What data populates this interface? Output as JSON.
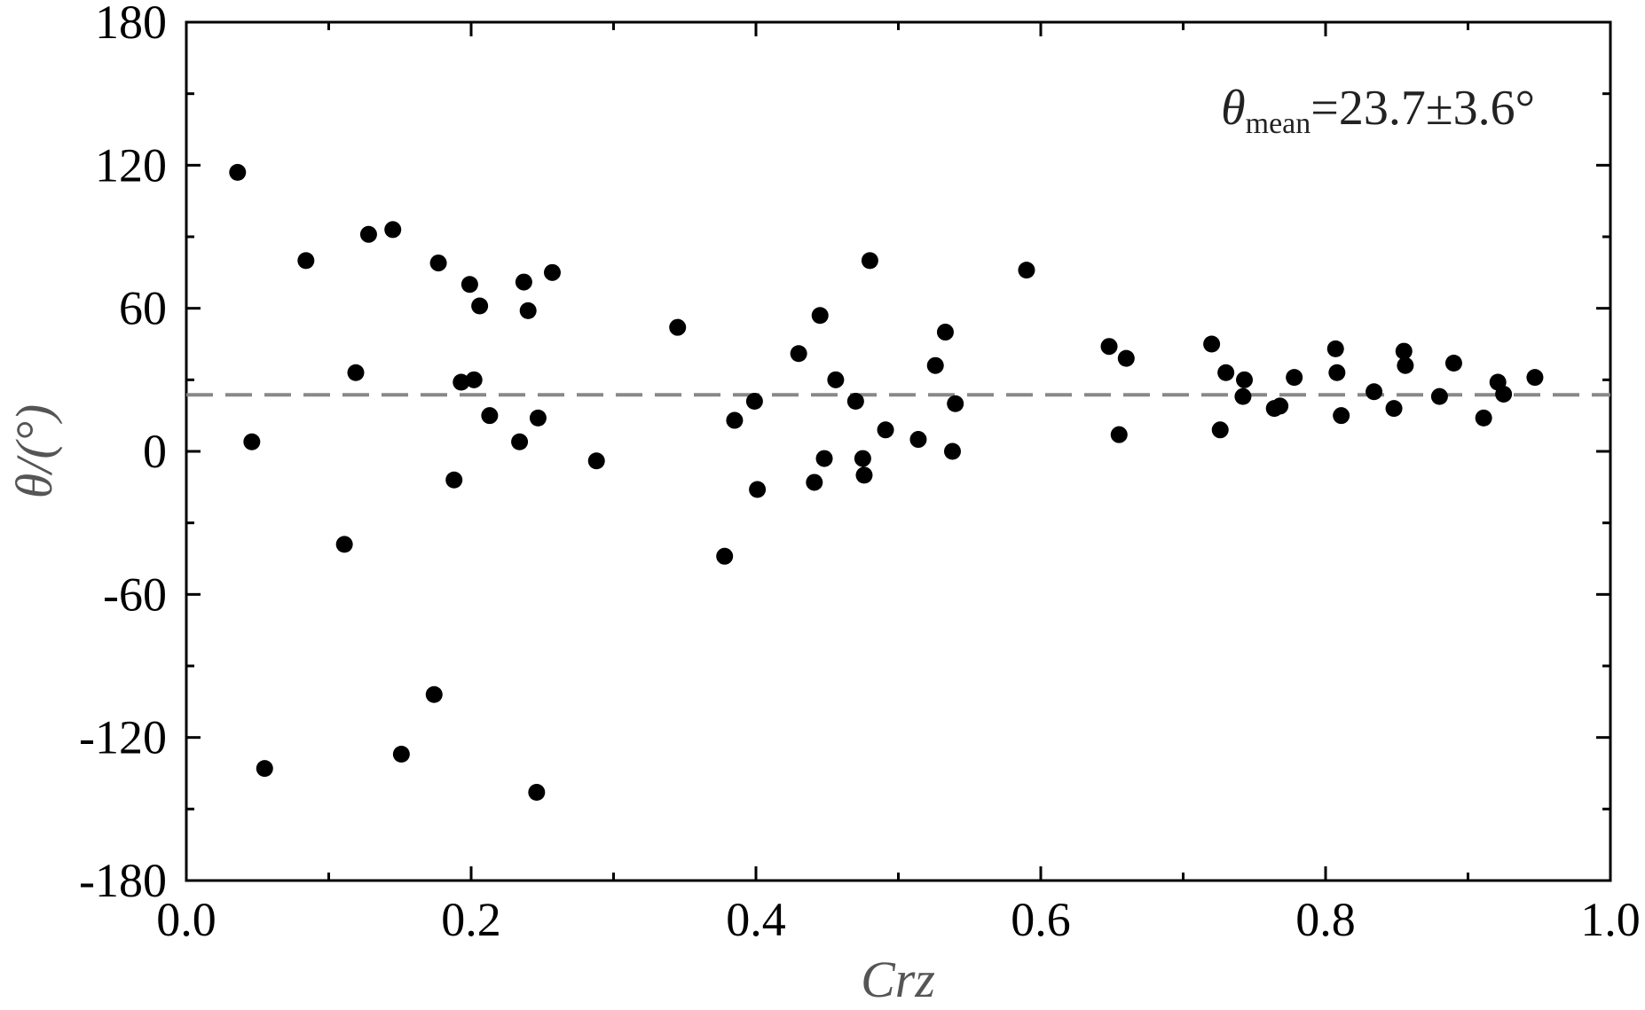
{
  "chart_data": {
    "type": "scatter",
    "xlabel": "Crz",
    "ylabel": "θ/(°)",
    "xlim": [
      0.0,
      1.0
    ],
    "ylim": [
      -180,
      180
    ],
    "x_ticks": [
      0.0,
      0.2,
      0.4,
      0.6,
      0.8,
      1.0
    ],
    "x_tick_labels": [
      "0.0",
      "0.2",
      "0.4",
      "0.6",
      "0.8",
      "1.0"
    ],
    "y_ticks": [
      -180,
      -120,
      -60,
      0,
      60,
      120,
      180
    ],
    "y_tick_labels": [
      "-180",
      "-120",
      "-60",
      "0",
      "60",
      "120",
      "180"
    ],
    "grid": false,
    "marker_color": "#000000",
    "mean_line": {
      "value": 23.7,
      "style": "dashed",
      "color": "#888888"
    },
    "annotation": {
      "symbol": "θ",
      "subscript": "mean",
      "text": "=23.7±3.6°"
    },
    "points": [
      [
        0.036,
        117
      ],
      [
        0.046,
        4
      ],
      [
        0.055,
        -133
      ],
      [
        0.084,
        80
      ],
      [
        0.111,
        -39
      ],
      [
        0.119,
        33
      ],
      [
        0.128,
        91
      ],
      [
        0.145,
        93
      ],
      [
        0.151,
        -127
      ],
      [
        0.174,
        -102
      ],
      [
        0.177,
        79
      ],
      [
        0.188,
        -12
      ],
      [
        0.193,
        29
      ],
      [
        0.199,
        70
      ],
      [
        0.202,
        30
      ],
      [
        0.206,
        61
      ],
      [
        0.213,
        15
      ],
      [
        0.234,
        4
      ],
      [
        0.237,
        71
      ],
      [
        0.24,
        59
      ],
      [
        0.246,
        -143
      ],
      [
        0.247,
        14
      ],
      [
        0.257,
        75
      ],
      [
        0.288,
        -4
      ],
      [
        0.345,
        52
      ],
      [
        0.378,
        -44
      ],
      [
        0.385,
        13
      ],
      [
        0.399,
        21
      ],
      [
        0.401,
        -16
      ],
      [
        0.43,
        41
      ],
      [
        0.441,
        -13
      ],
      [
        0.445,
        57
      ],
      [
        0.448,
        -3
      ],
      [
        0.456,
        30
      ],
      [
        0.47,
        21
      ],
      [
        0.475,
        -3
      ],
      [
        0.476,
        -10
      ],
      [
        0.48,
        80
      ],
      [
        0.491,
        9
      ],
      [
        0.514,
        5
      ],
      [
        0.526,
        36
      ],
      [
        0.533,
        50
      ],
      [
        0.538,
        0
      ],
      [
        0.54,
        20
      ],
      [
        0.59,
        76
      ],
      [
        0.648,
        44
      ],
      [
        0.655,
        7
      ],
      [
        0.66,
        39
      ],
      [
        0.72,
        45
      ],
      [
        0.726,
        9
      ],
      [
        0.73,
        33
      ],
      [
        0.742,
        23
      ],
      [
        0.743,
        30
      ],
      [
        0.764,
        18
      ],
      [
        0.768,
        19
      ],
      [
        0.778,
        31
      ],
      [
        0.807,
        43
      ],
      [
        0.808,
        33
      ],
      [
        0.811,
        15
      ],
      [
        0.834,
        25
      ],
      [
        0.848,
        18
      ],
      [
        0.855,
        42
      ],
      [
        0.856,
        36
      ],
      [
        0.88,
        23
      ],
      [
        0.89,
        37
      ],
      [
        0.911,
        14
      ],
      [
        0.921,
        29
      ],
      [
        0.925,
        24
      ],
      [
        0.947,
        31
      ]
    ]
  }
}
